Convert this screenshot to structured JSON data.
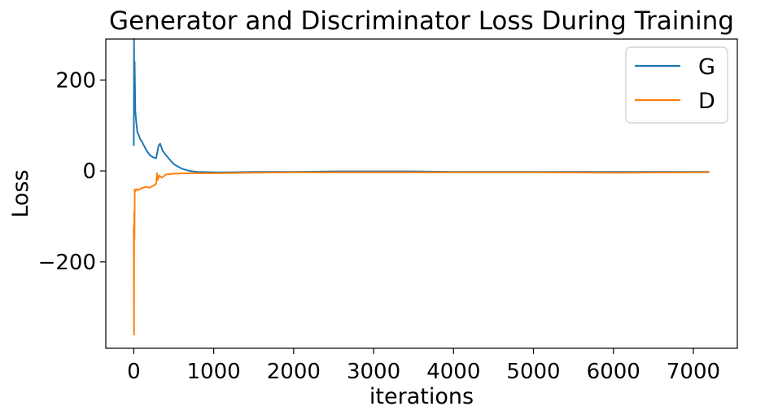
{
  "chart_data": {
    "type": "line",
    "title": "Generator and Discriminator Loss During Training",
    "xlabel": "iterations",
    "ylabel": "Loss",
    "xlim": [
      -350,
      7550
    ],
    "ylim": [
      -390,
      290
    ],
    "xticks": [
      0,
      1000,
      2000,
      3000,
      4000,
      5000,
      6000,
      7000
    ],
    "xtick_labels": [
      "0",
      "1000",
      "2000",
      "3000",
      "4000",
      "5000",
      "6000",
      "7000"
    ],
    "yticks": [
      200,
      0,
      -200
    ],
    "ytick_labels": [
      "200",
      "0",
      "−200"
    ],
    "grid": false,
    "legend_position": "top-right",
    "series": [
      {
        "name": "G",
        "color": "#1f77b4",
        "x": [
          0,
          3,
          6,
          10,
          15,
          20,
          30,
          45,
          60,
          80,
          100,
          130,
          160,
          200,
          240,
          280,
          310,
          330,
          360,
          400,
          450,
          500,
          600,
          700,
          800,
          1000,
          1200,
          1500,
          2000,
          2500,
          3000,
          3500,
          4000,
          5000,
          6000,
          7000,
          7200
        ],
        "y": [
          55,
          290,
          150,
          240,
          180,
          130,
          110,
          85,
          80,
          70,
          65,
          55,
          45,
          35,
          30,
          28,
          55,
          60,
          45,
          35,
          25,
          15,
          5,
          0,
          -2,
          -3,
          -3,
          -2,
          -2,
          -1,
          -1,
          -1,
          -2,
          -2,
          -2,
          -2,
          -2
        ]
      },
      {
        "name": "D",
        "color": "#ff7f0e",
        "x": [
          0,
          3,
          5,
          8,
          12,
          20,
          40,
          60,
          100,
          150,
          200,
          250,
          280,
          290,
          300,
          320,
          350,
          400,
          500,
          700,
          1000,
          1500,
          2000,
          3000,
          4000,
          5000,
          6000,
          7000,
          7200
        ],
        "y": [
          -120,
          -360,
          -90,
          -150,
          -40,
          -45,
          -40,
          -42,
          -38,
          -35,
          -37,
          -32,
          -28,
          -5,
          -20,
          -10,
          -15,
          -8,
          -6,
          -5,
          -5,
          -4,
          -3,
          -3,
          -3,
          -3,
          -4,
          -3,
          -3
        ]
      }
    ]
  }
}
